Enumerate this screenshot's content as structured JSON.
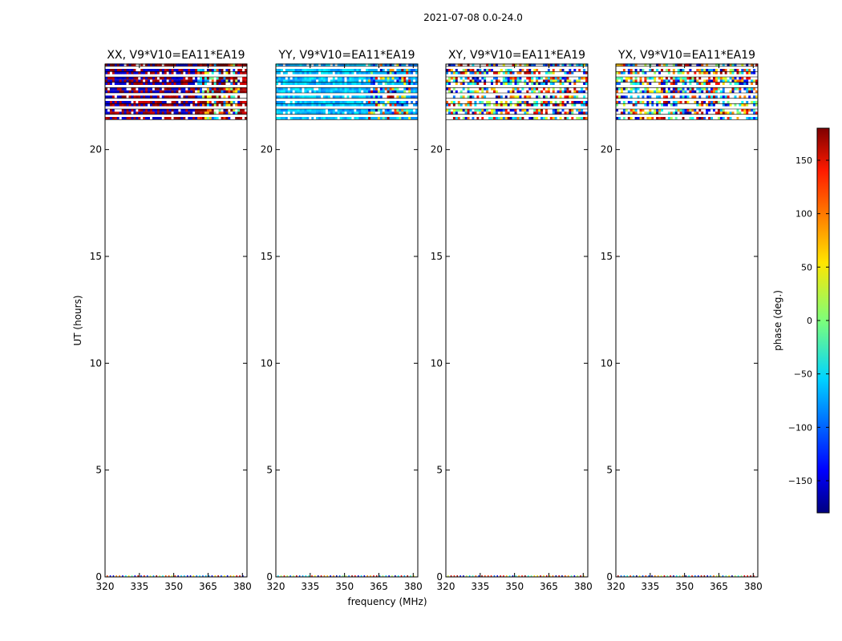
{
  "chart_data": {
    "type": "heatmap",
    "suptitle": "2021-07-08 0.0-24.0",
    "xlabel": "frequency (MHz)",
    "ylabel": "UT (hours)",
    "xlim": [
      320,
      382
    ],
    "ylim": [
      0,
      24
    ],
    "xticks": [
      320,
      335,
      350,
      365,
      380
    ],
    "yticks": [
      0,
      5,
      10,
      15,
      20
    ],
    "panels": [
      {
        "title": "XX, V9*V10=EA11*EA19",
        "pol": "XX"
      },
      {
        "title": "YY, V9*V10=EA11*EA19",
        "pol": "YY"
      },
      {
        "title": "XY, V9*V10=EA11*EA19",
        "pol": "XY"
      },
      {
        "title": "YX, V9*V10=EA11*EA19",
        "pol": "YX"
      }
    ],
    "data_ut_range": [
      21.4,
      24.0
    ],
    "colorbar": {
      "label": "phase (deg.)",
      "range": [
        -180,
        180
      ],
      "ticks": [
        150,
        100,
        50,
        0,
        -50,
        -100,
        -150
      ],
      "tick_labels": [
        "150",
        "100",
        "50",
        "0",
        "−50",
        "−100",
        "−150"
      ],
      "colormap": "jet"
    }
  }
}
